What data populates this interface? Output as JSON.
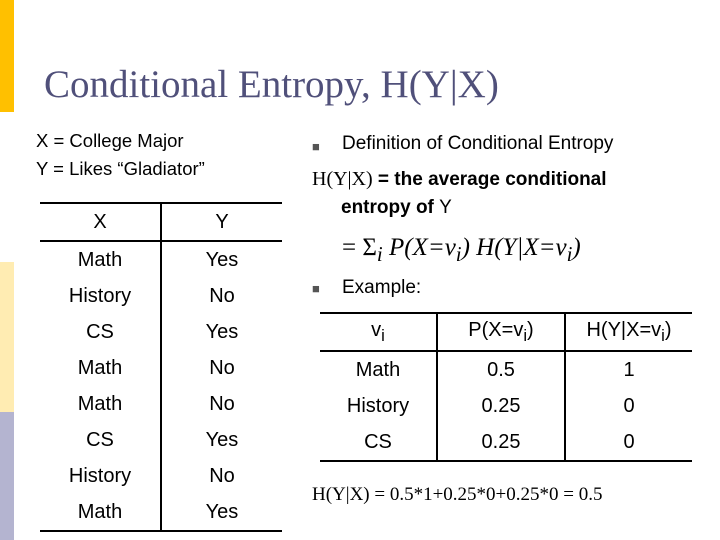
{
  "title": "Conditional Entropy, H(Y|X)",
  "definitions": {
    "x_def": "X = College Major",
    "y_def": "Y = Likes “Gladiator”"
  },
  "xy_table": {
    "headers": [
      "X",
      "Y"
    ],
    "rows": [
      [
        "Math",
        "Yes"
      ],
      [
        "History",
        "No"
      ],
      [
        "CS",
        "Yes"
      ],
      [
        "Math",
        "No"
      ],
      [
        "Math",
        "No"
      ],
      [
        "CS",
        "Yes"
      ],
      [
        "History",
        "No"
      ],
      [
        "Math",
        "Yes"
      ]
    ]
  },
  "definition_block": {
    "heading": "Definition of Conditional Entropy",
    "line1_symbol": "H(Y|X)",
    "line1_text": " = the average conditional",
    "line2_text": "entropy of ",
    "line2_var": "Y",
    "formula_eq": "= Σ",
    "formula_sub": "i",
    "formula_rest": " P(X=v",
    "formula_sub2": "i",
    "formula_rest2": ") H(Y|X=v",
    "formula_sub3": "i",
    "formula_close": ")"
  },
  "example_label": "Example:",
  "example_table": {
    "headers": [
      {
        "main": "v",
        "sub": "i",
        "tail": ""
      },
      {
        "main": "P(X=v",
        "sub": "i",
        "tail": ")"
      },
      {
        "main": "H(Y|X=v",
        "sub": "i",
        "tail": ")"
      }
    ],
    "rows": [
      [
        "Math",
        "0.5",
        "1"
      ],
      [
        "History",
        "0.25",
        "0"
      ],
      [
        "CS",
        "0.25",
        "0"
      ]
    ]
  },
  "result": "H(Y|X) = 0.5*1+0.25*0+0.25*0 = 0.5",
  "colors": {
    "title": "#50507a",
    "sidebar_top": "#ffc000",
    "sidebar_bottom": "#b4b4d0"
  },
  "icons": {
    "bullet": "square-bullet-icon"
  }
}
